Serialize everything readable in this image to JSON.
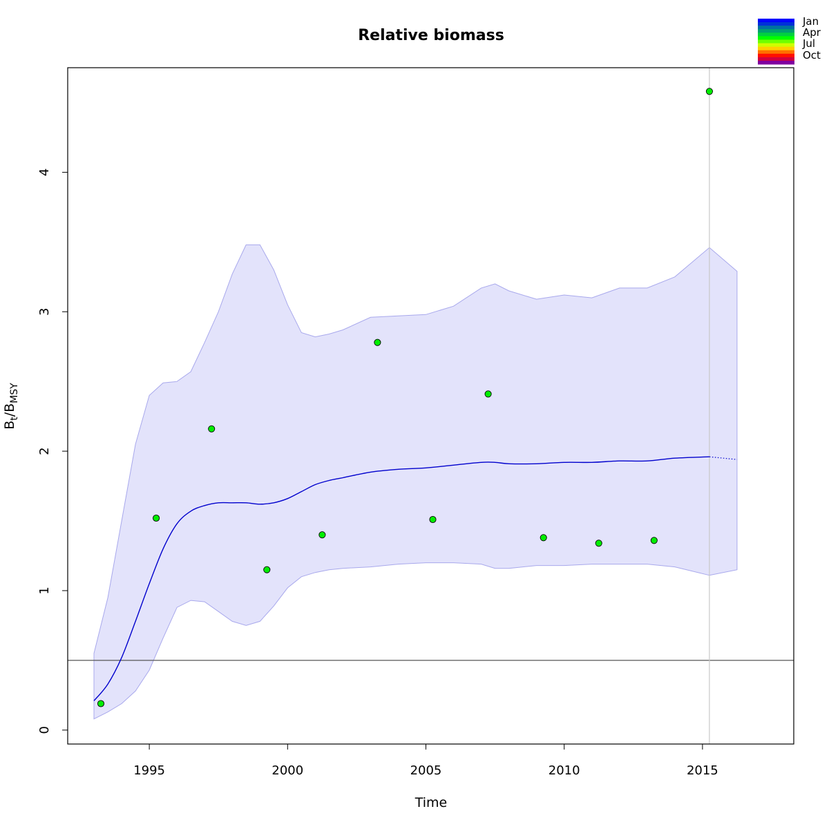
{
  "chart_data": {
    "type": "line",
    "title": "Relative biomass",
    "xlabel": "Time",
    "ylabel": {
      "main": "B",
      "sub1": "t",
      "sep": "/B",
      "sub2": "MSY"
    },
    "xlim": [
      1992.05,
      2018.3
    ],
    "ylim": [
      -0.1,
      4.75
    ],
    "x_ticks": [
      1995,
      2000,
      2005,
      2010,
      2015
    ],
    "x_tick_labels": [
      "1995",
      "2000",
      "2005",
      "2010",
      "2015"
    ],
    "y_ticks": [
      0,
      1,
      2,
      3,
      4
    ],
    "y_tick_labels": [
      "0",
      "1",
      "2",
      "3",
      "4"
    ],
    "grid": false,
    "reference_line_y": 0.5,
    "reference_line_x": 2015.25,
    "estimate": {
      "x": [
        1993,
        1993.5,
        1994,
        1994.5,
        1995,
        1995.5,
        1996,
        1996.5,
        1997,
        1997.5,
        1998,
        1998.5,
        1999,
        1999.5,
        2000,
        2000.5,
        2001,
        2001.5,
        2002,
        2003,
        2004,
        2005,
        2006,
        2007,
        2007.5,
        2008,
        2009,
        2010,
        2011,
        2012,
        2013,
        2014,
        2015.25
      ],
      "y": [
        0.21,
        0.33,
        0.52,
        0.78,
        1.05,
        1.3,
        1.48,
        1.57,
        1.61,
        1.63,
        1.63,
        1.63,
        1.62,
        1.63,
        1.66,
        1.71,
        1.76,
        1.79,
        1.81,
        1.85,
        1.87,
        1.88,
        1.9,
        1.92,
        1.92,
        1.91,
        1.91,
        1.92,
        1.92,
        1.93,
        1.93,
        1.95,
        1.96
      ]
    },
    "prediction": {
      "x": [
        2015.25,
        2016.25
      ],
      "y": [
        1.96,
        1.94
      ]
    },
    "confidence_band": {
      "x": [
        1993,
        1993.5,
        1994,
        1994.5,
        1995,
        1995.5,
        1996,
        1996.5,
        1997,
        1997.5,
        1998,
        1998.5,
        1999,
        1999.5,
        2000,
        2000.5,
        2001,
        2001.5,
        2002,
        2003,
        2004,
        2005,
        2006,
        2007,
        2007.5,
        2008,
        2009,
        2010,
        2011,
        2012,
        2013,
        2014,
        2015.25,
        2016.25
      ],
      "upper": [
        0.55,
        0.95,
        1.5,
        2.05,
        2.4,
        2.49,
        2.5,
        2.57,
        2.78,
        3.0,
        3.27,
        3.48,
        3.48,
        3.3,
        3.05,
        2.85,
        2.82,
        2.84,
        2.87,
        2.96,
        2.97,
        2.98,
        3.04,
        3.17,
        3.2,
        3.15,
        3.09,
        3.12,
        3.1,
        3.17,
        3.17,
        3.25,
        3.46,
        3.29
      ],
      "lower": [
        0.08,
        0.13,
        0.19,
        0.28,
        0.43,
        0.66,
        0.88,
        0.93,
        0.92,
        0.85,
        0.78,
        0.75,
        0.78,
        0.89,
        1.02,
        1.1,
        1.13,
        1.15,
        1.16,
        1.17,
        1.19,
        1.2,
        1.2,
        1.19,
        1.16,
        1.16,
        1.18,
        1.18,
        1.19,
        1.19,
        1.19,
        1.17,
        1.11,
        1.15
      ]
    },
    "observations": {
      "x": [
        1993.25,
        1995.25,
        1997.25,
        1999.25,
        2001.25,
        2003.25,
        2005.25,
        2007.25,
        2009.25,
        2011.25,
        2013.25,
        2015.25
      ],
      "y": [
        0.19,
        1.52,
        2.16,
        1.15,
        1.4,
        2.78,
        1.51,
        2.41,
        1.38,
        1.34,
        1.36,
        4.58
      ]
    },
    "legend": {
      "placement": "top-right",
      "labels": [
        "Jan",
        "Apr",
        "Jul",
        "Oct"
      ],
      "colors": [
        "#0000ff",
        "#0030d8",
        "#0070a0",
        "#00a070",
        "#00d040",
        "#00ff00",
        "#70ff00",
        "#d0ff00",
        "#ffd000",
        "#ff7000",
        "#ff1000",
        "#d00040",
        "#8000a0"
      ]
    },
    "colors": {
      "estimate": "#0000cd",
      "band_fill": "#e3e3fb",
      "band_stroke": "#a8a8ec",
      "points_fill": "#00ee00",
      "points_stroke": "#000000",
      "reference_line": "#555555",
      "vline": "#c8c8c8"
    }
  }
}
